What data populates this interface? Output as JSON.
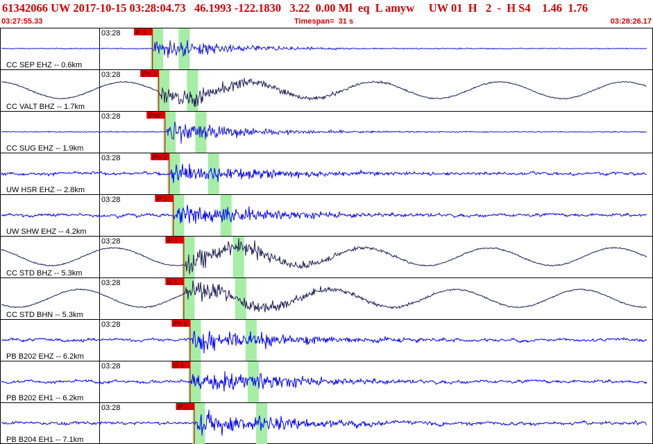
{
  "header": {
    "title": "61342066 UW 2017-10-15 03:28:04.73   46.1993 -122.1830   3.22  0.00 Ml  eq  L amyw     UW 01  H   2  -  H S4    1.46  1.76",
    "start_time": "03:27:55.33",
    "timespan": "Timespan=  31 s",
    "end_time": "03:28:26.17"
  },
  "colors": {
    "short_period": "#1a1ad6",
    "broadband": "#1f1f55",
    "strain": "#0000ff",
    "pick": "#e00000",
    "window": "#a6eea6",
    "grid": "#000000",
    "title": "#d40000"
  },
  "chart_data": {
    "type": "line",
    "time_range": [
      "03:27:55.33",
      "03:28:26.17"
    ],
    "timespan_s": 31,
    "minute_tick_label": "03:28",
    "channels": [
      {
        "label": "CC SEP EHZ -- 0.6km",
        "pick": "iP 1",
        "amplitude": 0.7,
        "kind": "short_period",
        "p_s": 7.2,
        "s_s": 8.6
      },
      {
        "label": "CC VALT BHZ -- 1.7km",
        "pick": "iPd 1",
        "amplitude": 0.75,
        "kind": "broadband",
        "p_s": 7.5,
        "s_s": 9.0
      },
      {
        "label": "CC SUG EHZ -- 1.9km",
        "pick": "iPd0",
        "amplitude": 0.8,
        "kind": "short_period",
        "p_s": 7.8,
        "s_s": 9.4
      },
      {
        "label": "UW HSR EHZ -- 2.8km",
        "pick": "iPd 1",
        "amplitude": 0.85,
        "kind": "strain",
        "p_s": 8.0,
        "s_s": 10.0
      },
      {
        "label": "UW SHW EHZ -- 4.2km",
        "pick": "iP 1",
        "amplitude": 0.85,
        "kind": "strain",
        "p_s": 8.2,
        "s_s": 10.6
      },
      {
        "label": "CC STD BHZ -- 5.3km",
        "pick": "iP 1",
        "amplitude": 0.8,
        "kind": "broadband",
        "p_s": 8.7,
        "s_s": 11.2
      },
      {
        "label": "CC STD BHN -- 5.3km",
        "pick": "iS 1",
        "amplitude": 0.8,
        "kind": "broadband",
        "p_s": 8.7,
        "s_s": 11.3
      },
      {
        "label": "PB B202 EHZ -- 6.2km",
        "pick": "iPc 1",
        "amplitude": 0.9,
        "kind": "strain",
        "p_s": 9.0,
        "s_s": 11.8
      },
      {
        "label": "PB B202 EH1 -- 6.2km",
        "pick": "iS 1",
        "amplitude": 0.9,
        "kind": "strain",
        "p_s": 9.0,
        "s_s": 11.9
      },
      {
        "label": "PB B204 EH1 -- 7.1km",
        "pick": "iP 1",
        "amplitude": 0.9,
        "kind": "strain",
        "p_s": 9.2,
        "s_s": 12.3
      }
    ]
  }
}
